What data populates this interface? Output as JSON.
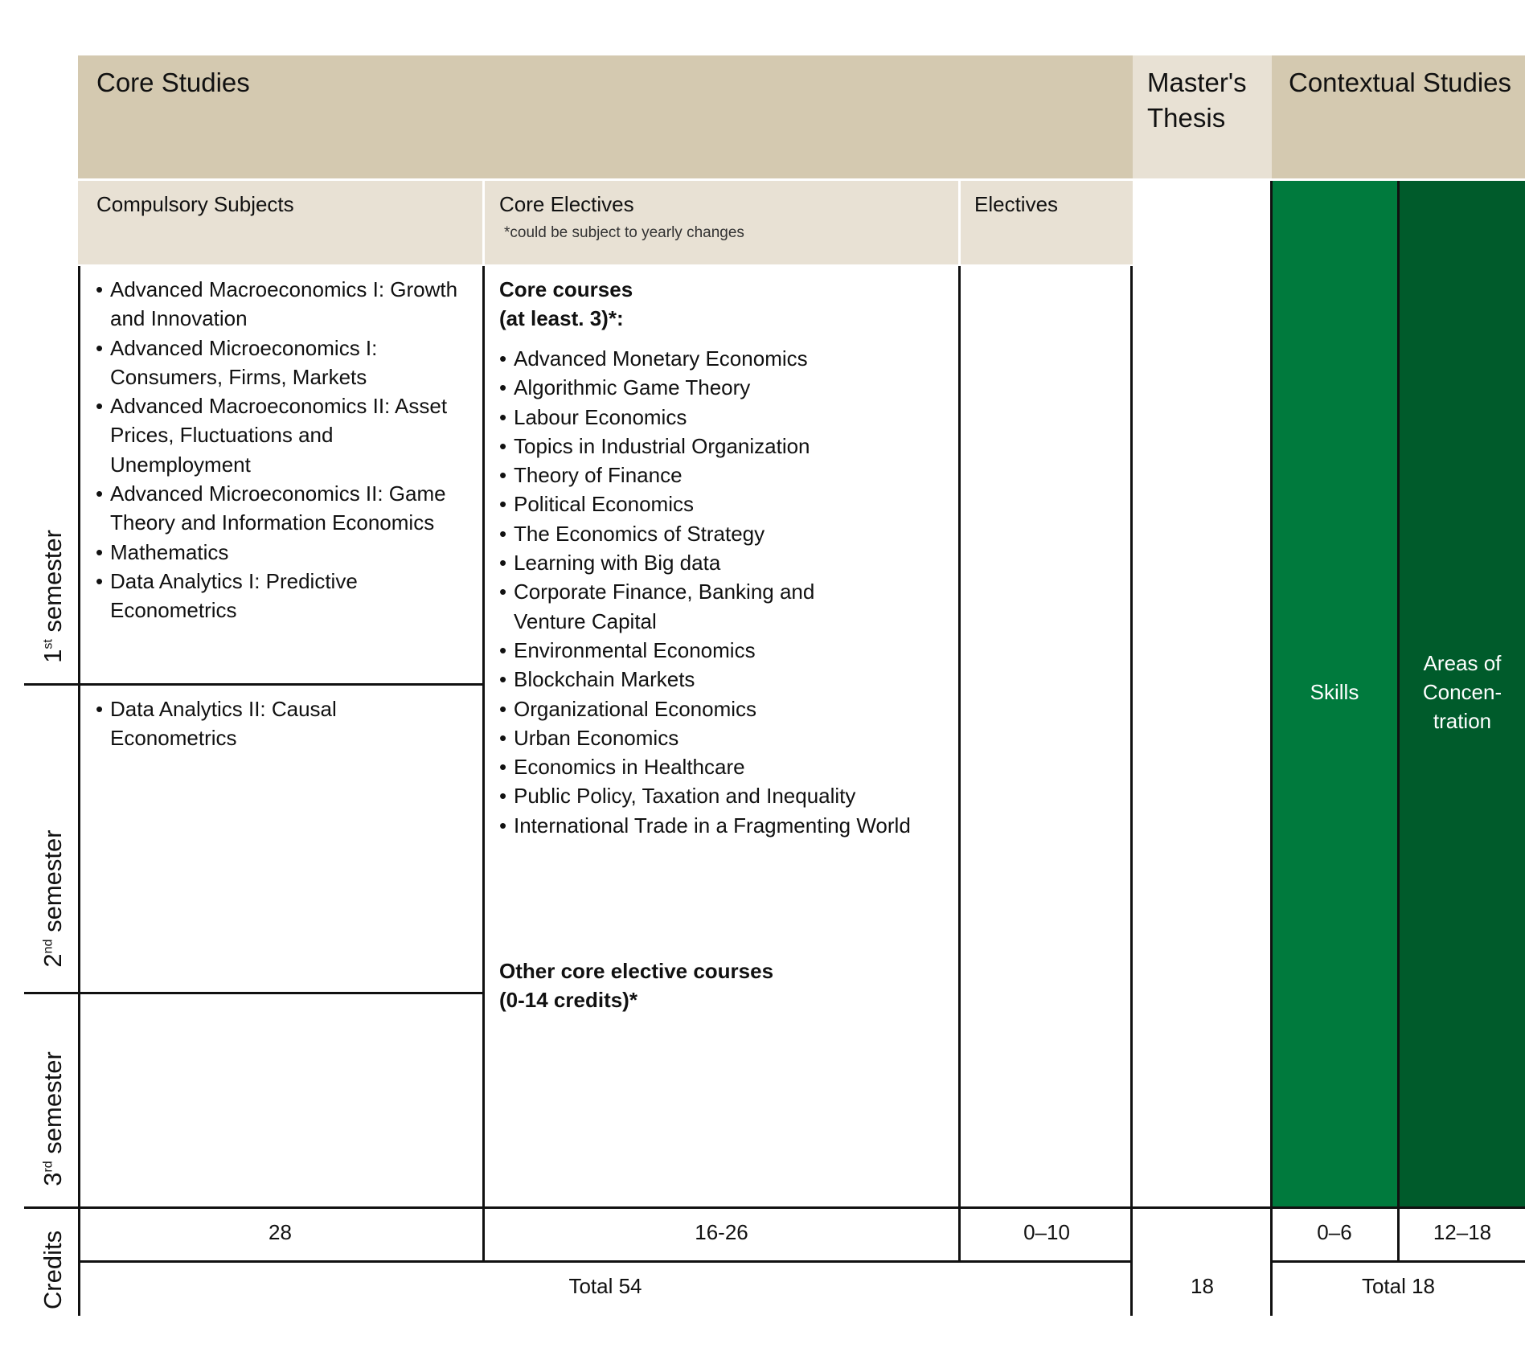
{
  "header": {
    "core_studies": "Core Studies",
    "masters_thesis": "Master's Thesis",
    "contextual_studies": "Contextual Studies"
  },
  "subheader": {
    "compulsory": "Compulsory Subjects",
    "core_electives": "Core Electives",
    "core_electives_note": "*could be subject to yearly changes",
    "electives": "Electives"
  },
  "compulsory_sem1": [
    "Advanced Macroeconomics I: Growth and Innovation",
    "Advanced Microeconomics I: Consumers, Firms, Markets",
    "Advanced Macroeconomics II: Asset Prices, Fluctuations and Unemployment",
    "Advanced Microeconomics II: Game Theory and Information Economics",
    "Mathematics",
    "Data Analytics I: Predictive Econometrics"
  ],
  "compulsory_sem2": [
    "Data Analytics II: Causal Econometrics"
  ],
  "core_electives": {
    "core_heading_line1": "Core courses",
    "core_heading_line2": "(at least. 3)*:",
    "courses": [
      "Advanced Monetary Economics",
      "Algorithmic Game Theory",
      "Labour Economics",
      "Topics in Industrial Organization",
      "Theory of Finance",
      "Political Economics",
      "The Economics of Strategy",
      "Learning with Big data",
      "Corporate Finance, Banking and Venture Capital",
      "Environmental Economics",
      "Blockchain Markets",
      "Organizational Economics",
      "Urban Economics",
      "Economics in Healthcare",
      "Public Policy, Taxation and Inequality",
      "International Trade in a Fragmenting World"
    ],
    "other_heading_line1": "Other core elective courses",
    "other_heading_line2": "(0-14 credits)*"
  },
  "contextual": {
    "skills": "Skills",
    "areas": "Areas of Concen- tration"
  },
  "semesters": {
    "s1_num": "1",
    "s1_sup": "st",
    "s1_word": "semester",
    "s2_num": "2",
    "s2_sup": "nd",
    "s2_word": "semester",
    "s3_num": "3",
    "s3_sup": "rd",
    "s3_word": "semester",
    "credits": "Credits"
  },
  "credits": {
    "compulsory": "28",
    "core_electives": "16-26",
    "electives": "0–10",
    "skills": "0–6",
    "areas": "12–18",
    "core_total": "Total 54",
    "thesis": "18",
    "contextual_total": "Total 18"
  },
  "colors": {
    "header_tan": "#d4c9b0",
    "header_light": "#e8e1d4",
    "skills_green": "#007a3d",
    "areas_green": "#005b2b"
  }
}
